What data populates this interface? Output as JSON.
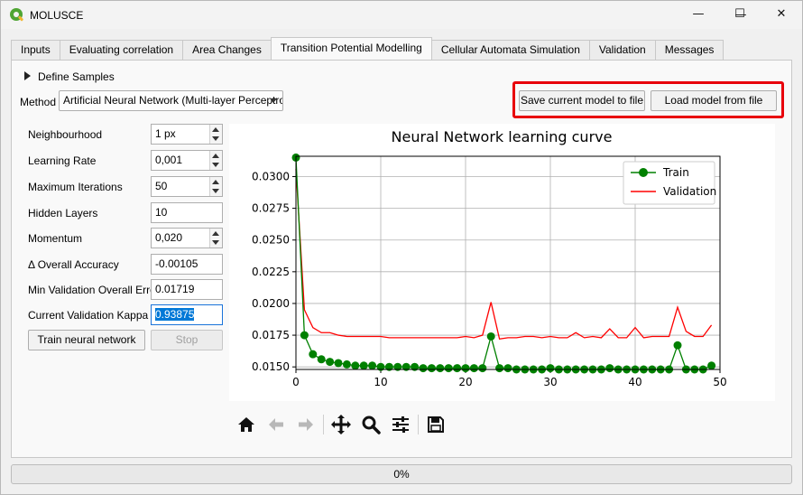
{
  "window": {
    "title": "MOLUSCE",
    "minimize_glyph": "—",
    "maximize_glyph": "☐",
    "close_glyph": "✕"
  },
  "tabs": [
    {
      "label": "Inputs",
      "active": false
    },
    {
      "label": "Evaluating correlation",
      "active": false
    },
    {
      "label": "Area Changes",
      "active": false
    },
    {
      "label": "Transition Potential Modelling",
      "active": true
    },
    {
      "label": "Cellular Automata Simulation",
      "active": false
    },
    {
      "label": "Validation",
      "active": false
    },
    {
      "label": "Messages",
      "active": false
    }
  ],
  "define_samples": "Define Samples",
  "method": {
    "label": "Method",
    "value": "Artificial Neural Network (Multi-layer Perceptro"
  },
  "buttons": {
    "save_model": "Save current model to file",
    "load_model": "Load model from file",
    "train": "Train neural network",
    "stop": "Stop"
  },
  "params": [
    {
      "label": "Neighbourhood",
      "value": "1 px",
      "spin": true
    },
    {
      "label": "Learning Rate",
      "value": "0,001",
      "spin": true
    },
    {
      "label": "Maximum Iterations",
      "value": "50",
      "spin": true
    },
    {
      "label": "Hidden Layers",
      "value": "10",
      "spin": false
    },
    {
      "label": "Momentum",
      "value": "0,020",
      "spin": true
    },
    {
      "label": "Δ Overall Accuracy",
      "value": "-0.00105",
      "spin": false
    },
    {
      "label": "Min Validation Overall Error",
      "value": "0.01719",
      "spin": false
    },
    {
      "label": "Current Validation Kappa",
      "value": "0.93875",
      "spin": false,
      "selected": true
    }
  ],
  "toolbar_icons": [
    "home-icon",
    "back-arrow-icon",
    "forward-arrow-icon",
    "pan-icon",
    "zoom-icon",
    "configure-subplots-icon",
    "save-icon"
  ],
  "progress": {
    "value": 0,
    "text": "0%"
  },
  "colors": {
    "train": "#008000",
    "validation": "#ff0000",
    "highlight": "#e8000b"
  },
  "chart_data": {
    "type": "line",
    "title": "Neural Network learning curve",
    "xlim": [
      0,
      50
    ],
    "ylim": [
      0.0148,
      0.0316
    ],
    "xticks": [
      0,
      10,
      20,
      30,
      40,
      50
    ],
    "yticks": [
      0.015,
      0.0175,
      0.02,
      0.0225,
      0.025,
      0.0275,
      0.03
    ],
    "ytick_labels": [
      "0.0150",
      "0.0175",
      "0.0200",
      "0.0225",
      "0.0250",
      "0.0275",
      "0.0300"
    ],
    "grid": true,
    "legend_position": "top-right",
    "series": [
      {
        "name": "Train",
        "marker": "circle",
        "x": [
          0,
          1,
          2,
          3,
          4,
          5,
          6,
          7,
          8,
          9,
          10,
          11,
          12,
          13,
          14,
          15,
          16,
          17,
          18,
          19,
          20,
          21,
          22,
          23,
          24,
          25,
          26,
          27,
          28,
          29,
          30,
          31,
          32,
          33,
          34,
          35,
          36,
          37,
          38,
          39,
          40,
          41,
          42,
          43,
          44,
          45,
          46,
          47,
          48,
          49
        ],
        "values": [
          0.0315,
          0.0175,
          0.016,
          0.0156,
          0.0154,
          0.0153,
          0.0152,
          0.0151,
          0.0151,
          0.0151,
          0.015,
          0.015,
          0.015,
          0.015,
          0.015,
          0.0149,
          0.0149,
          0.0149,
          0.0149,
          0.0149,
          0.0149,
          0.0149,
          0.0149,
          0.0174,
          0.0149,
          0.0149,
          0.0148,
          0.0148,
          0.0148,
          0.0148,
          0.0149,
          0.0148,
          0.0148,
          0.0148,
          0.0148,
          0.0148,
          0.0148,
          0.0149,
          0.0148,
          0.0148,
          0.0148,
          0.0148,
          0.0148,
          0.0147,
          0.0147,
          0.0167,
          0.0147,
          0.0147,
          0.0148,
          0.0151
        ]
      },
      {
        "name": "Validation",
        "marker": "none",
        "x": [
          0,
          1,
          2,
          3,
          4,
          5,
          6,
          7,
          8,
          9,
          10,
          11,
          12,
          13,
          14,
          15,
          16,
          17,
          18,
          19,
          20,
          21,
          22,
          23,
          24,
          25,
          26,
          27,
          28,
          29,
          30,
          31,
          32,
          33,
          34,
          35,
          36,
          37,
          38,
          39,
          40,
          41,
          42,
          43,
          44,
          45,
          46,
          47,
          48,
          49
        ],
        "values": [
          0.0306,
          0.0195,
          0.0181,
          0.0177,
          0.0177,
          0.0175,
          0.0174,
          0.0174,
          0.0174,
          0.0174,
          0.0174,
          0.0173,
          0.0173,
          0.0173,
          0.0173,
          0.0173,
          0.0173,
          0.0173,
          0.0173,
          0.0173,
          0.0174,
          0.0173,
          0.0175,
          0.0201,
          0.0172,
          0.0173,
          0.0173,
          0.0174,
          0.0174,
          0.0173,
          0.0174,
          0.0173,
          0.0173,
          0.0177,
          0.0173,
          0.0174,
          0.0173,
          0.018,
          0.0173,
          0.0173,
          0.0181,
          0.0173,
          0.0174,
          0.0174,
          0.0174,
          0.0197,
          0.0178,
          0.0174,
          0.0174,
          0.0183
        ]
      }
    ]
  }
}
